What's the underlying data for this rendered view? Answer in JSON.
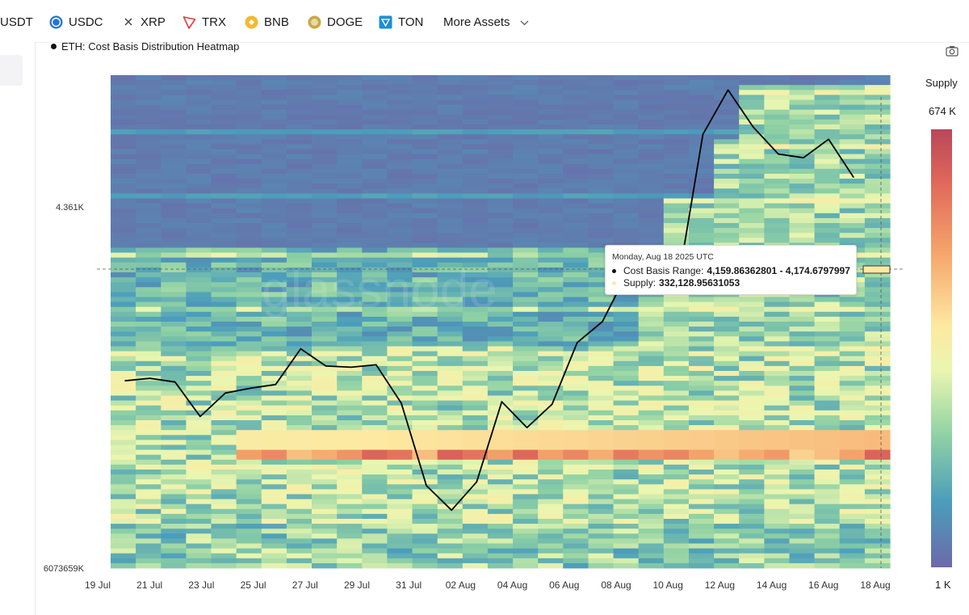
{
  "nav": {
    "assets": [
      {
        "label": "USDT",
        "icon": "usdt-icon"
      },
      {
        "label": "USDC",
        "icon": "usdc-icon"
      },
      {
        "label": "XRP",
        "icon": "xrp-icon"
      },
      {
        "label": "TRX",
        "icon": "trx-icon"
      },
      {
        "label": "BNB",
        "icon": "bnb-icon"
      },
      {
        "label": "DOGE",
        "icon": "doge-icon"
      },
      {
        "label": "TON",
        "icon": "ton-icon"
      }
    ],
    "more_label": "More Assets"
  },
  "chart_title": "ETH: Cost Basis Distribution Heatmap",
  "tooltip": {
    "date": "Monday, Aug 18 2025 UTC",
    "range_label": "Cost Basis Range:",
    "range_value": "4,159.86362801 - 4,174.6797997",
    "supply_label": "Supply:",
    "supply_value": "332,128.95631053"
  },
  "colorscale": {
    "title": "Supply",
    "max_label": "674 K",
    "min_label": "1 K"
  },
  "colors": {
    "line": "#000000",
    "accent": "#6c6aa8",
    "high": "#b8475a",
    "mid": "#fde9a1",
    "low": "#6c6aa8"
  },
  "chart_data": {
    "type": "heatmap",
    "title": "ETH: Cost Basis Distribution Heatmap",
    "x_tick_labels": [
      "19 Jul",
      "21 Jul",
      "23 Jul",
      "25 Jul",
      "27 Jul",
      "29 Jul",
      "31 Jul",
      "02 Aug",
      "04 Aug",
      "06 Aug",
      "08 Aug",
      "10 Aug",
      "12 Aug",
      "14 Aug",
      "16 Aug",
      "18 Aug"
    ],
    "y_tick_labels": [
      "4.361K",
      "6073659K"
    ],
    "dates": [
      "19 Jul",
      "20 Jul",
      "21 Jul",
      "22 Jul",
      "23 Jul",
      "24 Jul",
      "25 Jul",
      "26 Jul",
      "27 Jul",
      "28 Jul",
      "29 Jul",
      "30 Jul",
      "31 Jul",
      "01 Aug",
      "02 Aug",
      "03 Aug",
      "04 Aug",
      "05 Aug",
      "06 Aug",
      "07 Aug",
      "08 Aug",
      "09 Aug",
      "10 Aug",
      "11 Aug",
      "12 Aug",
      "13 Aug",
      "14 Aug",
      "15 Aug",
      "16 Aug",
      "17 Aug",
      "18 Aug"
    ],
    "price_line": [
      null,
      3560,
      3570,
      3555,
      3415,
      3510,
      3530,
      3545,
      3690,
      3620,
      3615,
      3625,
      3470,
      3135,
      3035,
      3150,
      3475,
      3370,
      3465,
      3715,
      3800,
      4000,
      3985,
      3950,
      4560,
      4740,
      4590,
      4480,
      4465,
      4540,
      4385
    ],
    "supply_colorscale": {
      "min": "1 K",
      "max": "674 K"
    },
    "highlighted_band": {
      "date": "18 Aug",
      "cost_basis_low": 4159.86362801,
      "cost_basis_high": 4174.6797997,
      "supply": 332128.95631053
    }
  }
}
